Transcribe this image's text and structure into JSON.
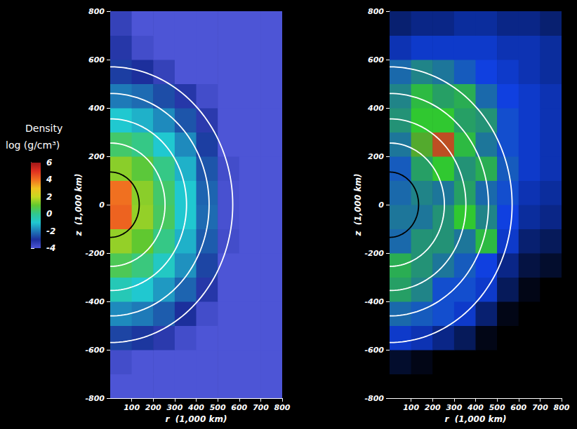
{
  "chart_data": [
    {
      "type": "heatmap",
      "x_label": "r  (1,000 km)",
      "y_label": "z  (1,000 km)",
      "xlim": [
        0,
        800
      ],
      "ylim": [
        -800,
        800
      ],
      "xticks": [
        100,
        200,
        300,
        400,
        500,
        600,
        700,
        800
      ],
      "yticks": [
        -800,
        -600,
        -400,
        -200,
        0,
        200,
        400,
        600,
        800
      ],
      "grid": false,
      "colorbar": {
        "title": "Density",
        "label": "log (g/cm³)",
        "range": [
          -4,
          6
        ],
        "ticks": [
          -4,
          -2,
          0,
          2,
          4,
          6
        ]
      },
      "x_bins": [
        0,
        100,
        200,
        300,
        400,
        500,
        600,
        700,
        800
      ],
      "y_bins": [
        -800,
        -700,
        -600,
        -500,
        -400,
        -300,
        -200,
        -100,
        0,
        100,
        200,
        300,
        400,
        500,
        600,
        700,
        800
      ],
      "cells": [
        [
          -4,
          -4,
          -4,
          -4,
          -4,
          -4,
          -4,
          -4
        ],
        [
          -3.8,
          -4,
          -4,
          -4,
          -4,
          -4,
          -4,
          -4
        ],
        [
          -2.7,
          -2.9,
          -3.3,
          -3.8,
          -4,
          -4,
          -4,
          -4
        ],
        [
          -1.8,
          -2.0,
          -2.4,
          -3.0,
          -3.8,
          -4,
          -4,
          -4
        ],
        [
          -0.6,
          -1.0,
          -1.6,
          -2.3,
          -3.2,
          -4,
          -4,
          -4
        ],
        [
          0.6,
          0.2,
          -0.8,
          -1.7,
          -2.7,
          -4,
          -4,
          -4
        ],
        [
          1.5,
          1.0,
          0.1,
          -1.3,
          -2.4,
          -3.8,
          -4,
          -4
        ],
        [
          4.2,
          1.5,
          0.5,
          -1.0,
          -2.2,
          -3.9,
          -4,
          -4
        ],
        [
          4.0,
          1.4,
          0.4,
          -1.0,
          -2.3,
          -3.9,
          -4,
          -4
        ],
        [
          1.4,
          0.9,
          0.1,
          -1.3,
          -2.5,
          -3.8,
          -4,
          -4
        ],
        [
          0.4,
          0.1,
          -1.0,
          -1.8,
          -2.8,
          -4,
          -4,
          -4
        ],
        [
          -1.0,
          -1.3,
          -1.8,
          -2.5,
          -3.3,
          -4,
          -4,
          -4
        ],
        [
          -2.0,
          -2.2,
          -2.6,
          -3.2,
          -3.8,
          -4,
          -4,
          -4
        ],
        [
          -2.8,
          -3.0,
          -3.5,
          -4,
          -4,
          -4,
          -4,
          -4
        ],
        [
          -3.2,
          -3.8,
          -4,
          -4,
          -4,
          -4,
          -4,
          -4
        ],
        [
          -3.5,
          -4,
          -4,
          -4,
          -4,
          -4,
          -4,
          -4
        ]
      ],
      "contours": [
        {
          "radius": 135,
          "color": "black"
        },
        {
          "radius": 255,
          "color": "white"
        },
        {
          "radius": 355,
          "color": "white"
        },
        {
          "radius": 460,
          "color": "white"
        },
        {
          "radius": 570,
          "color": "white"
        }
      ]
    },
    {
      "type": "heatmap",
      "x_label": "r  (1,000 km)",
      "y_label": "z  (1,000 km)",
      "xlim": [
        0,
        800
      ],
      "ylim": [
        -800,
        800
      ],
      "xticks": [
        100,
        200,
        300,
        400,
        500,
        600,
        700,
        800
      ],
      "yticks": [
        -800,
        -600,
        -400,
        -200,
        0,
        200,
        400,
        600,
        800
      ],
      "grid": false,
      "color_range": [
        0,
        3
      ],
      "x_bins": [
        0,
        100,
        200,
        300,
        400,
        500,
        600,
        700,
        800
      ],
      "y_bins": [
        -800,
        -700,
        -600,
        -500,
        -400,
        -300,
        -200,
        -100,
        0,
        100,
        200,
        300,
        400,
        500,
        600,
        700,
        800
      ],
      "cells": [
        [
          0,
          0,
          0,
          0,
          0,
          0,
          0,
          0
        ],
        [
          0.2,
          0.1,
          0,
          0,
          0,
          0,
          0,
          0
        ],
        [
          0.9,
          0.8,
          0.6,
          0.4,
          0.1,
          0,
          0,
          0
        ],
        [
          1.3,
          1.2,
          1.1,
          0.9,
          0.5,
          0.1,
          0,
          0
        ],
        [
          1.7,
          1.5,
          1.1,
          1.1,
          0.9,
          0.4,
          0.1,
          0
        ],
        [
          1.8,
          1.6,
          1.4,
          1.2,
          1.0,
          0.6,
          0.3,
          0.2
        ],
        [
          1.3,
          1.6,
          1.6,
          1.4,
          1.9,
          0.9,
          0.5,
          0.4
        ],
        [
          1.4,
          1.4,
          1.6,
          2.0,
          1.5,
          1.0,
          0.7,
          0.6
        ],
        [
          1.3,
          1.5,
          1.4,
          1.7,
          1.3,
          1.1,
          0.8,
          0.7
        ],
        [
          1.2,
          1.7,
          2.0,
          1.6,
          1.8,
          1.2,
          0.9,
          0.8
        ],
        [
          1.4,
          2.2,
          2.8,
          1.9,
          1.4,
          1.1,
          0.9,
          0.8
        ],
        [
          1.6,
          2.0,
          2.0,
          1.7,
          1.6,
          1.1,
          0.9,
          0.8
        ],
        [
          1.5,
          1.9,
          1.7,
          1.8,
          1.3,
          1.0,
          0.9,
          0.8
        ],
        [
          1.3,
          1.5,
          1.4,
          1.2,
          1.0,
          0.9,
          0.8,
          0.7
        ],
        [
          0.8,
          0.9,
          0.9,
          0.9,
          0.9,
          0.8,
          0.8,
          0.7
        ],
        [
          0.5,
          0.6,
          0.6,
          0.7,
          0.7,
          0.6,
          0.6,
          0.5
        ]
      ],
      "contours": [
        {
          "radius": 135,
          "color": "black"
        },
        {
          "radius": 255,
          "color": "white"
        },
        {
          "radius": 355,
          "color": "white"
        },
        {
          "radius": 460,
          "color": "white"
        },
        {
          "radius": 570,
          "color": "white"
        }
      ]
    }
  ]
}
